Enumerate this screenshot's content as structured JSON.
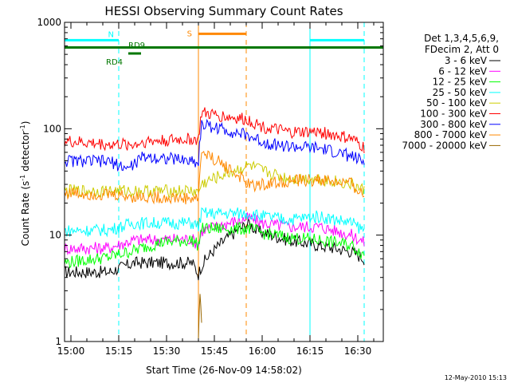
{
  "chart_data": {
    "type": "line",
    "title": "HESSI Observing Summary Count Rates",
    "xlabel": "Start Time (26-Nov-09 14:58:02)",
    "ylabel_main": "Count Rate (s",
    "ylabel_sup1": "-1",
    "ylabel_mid": " detector",
    "ylabel_sup2": "-1",
    "ylabel_end": ")",
    "x_ticks": [
      "15:00",
      "15:15",
      "15:30",
      "15:45",
      "16:00",
      "16:15",
      "16:30"
    ],
    "x_tick_minutes": [
      2,
      17,
      32,
      47,
      62,
      77,
      92
    ],
    "xlim_minutes": [
      0,
      100
    ],
    "y_ticks": [
      "1",
      "10",
      "100",
      "1000"
    ],
    "y_tick_values": [
      1,
      10,
      100,
      1000
    ],
    "ylim": [
      1,
      1000
    ],
    "y_scale": "log",
    "grid": false,
    "legend_header": [
      "Det 1,3,4,5,6,9,",
      "FDecim 2, Att 0"
    ],
    "legend_position": "right",
    "footer_timestamp": "12-May-2010 15:13",
    "series": [
      {
        "name": "3 - 6 keV",
        "color": "#000000",
        "points": [
          [
            0,
            4.5
          ],
          [
            14,
            4.5
          ],
          [
            22,
            5.5
          ],
          [
            40,
            5.5
          ],
          [
            42,
            4.3
          ],
          [
            43,
            5.2
          ],
          [
            58,
            13
          ],
          [
            60,
            11
          ],
          [
            65,
            10
          ],
          [
            70,
            9
          ],
          [
            80,
            8
          ],
          [
            90,
            7
          ],
          [
            94,
            6
          ]
        ]
      },
      {
        "name": "6 - 12 keV",
        "color": "#ff00ff",
        "points": [
          [
            0,
            7.5
          ],
          [
            14,
            7.6
          ],
          [
            22,
            9
          ],
          [
            40,
            9.2
          ],
          [
            42,
            8
          ],
          [
            43,
            11
          ],
          [
            58,
            14.5
          ],
          [
            62,
            13
          ],
          [
            70,
            12
          ],
          [
            80,
            12
          ],
          [
            90,
            10
          ],
          [
            94,
            8.5
          ]
        ]
      },
      {
        "name": "12 - 25 keV",
        "color": "#00ff00",
        "points": [
          [
            0,
            5.5
          ],
          [
            14,
            6.2
          ],
          [
            22,
            7.2
          ],
          [
            30,
            8.5
          ],
          [
            40,
            9
          ],
          [
            42,
            8
          ],
          [
            43,
            11.5
          ],
          [
            58,
            11.5
          ],
          [
            62,
            10.5
          ],
          [
            70,
            9.5
          ],
          [
            80,
            9
          ],
          [
            90,
            8
          ],
          [
            94,
            6.5
          ]
        ]
      },
      {
        "name": "25 - 50 keV",
        "color": "#00ffff",
        "points": [
          [
            0,
            11
          ],
          [
            14,
            11.2
          ],
          [
            22,
            13
          ],
          [
            40,
            13
          ],
          [
            42,
            12
          ],
          [
            43,
            16
          ],
          [
            58,
            16
          ],
          [
            62,
            15
          ],
          [
            70,
            14
          ],
          [
            80,
            15
          ],
          [
            90,
            13
          ],
          [
            94,
            11
          ]
        ]
      },
      {
        "name": "50 - 100 keV",
        "color": "#cccc00",
        "points": [
          [
            0,
            26
          ],
          [
            14,
            26
          ],
          [
            22,
            26
          ],
          [
            40,
            26
          ],
          [
            42,
            25
          ],
          [
            43,
            30
          ],
          [
            58,
            45
          ],
          [
            62,
            40
          ],
          [
            70,
            34
          ],
          [
            80,
            34
          ],
          [
            90,
            30
          ],
          [
            94,
            26
          ]
        ]
      },
      {
        "name": "100 - 300 keV",
        "color": "#ff0000",
        "points": [
          [
            0,
            76
          ],
          [
            14,
            71
          ],
          [
            22,
            71
          ],
          [
            25,
            76
          ],
          [
            40,
            80
          ],
          [
            42,
            78
          ],
          [
            43,
            140
          ],
          [
            58,
            120
          ],
          [
            62,
            105
          ],
          [
            70,
            92
          ],
          [
            80,
            93
          ],
          [
            90,
            80
          ],
          [
            94,
            66
          ]
        ]
      },
      {
        "name": "300 - 800 keV",
        "color": "#0000ff",
        "points": [
          [
            0,
            50
          ],
          [
            14,
            49
          ],
          [
            20,
            42
          ],
          [
            25,
            55
          ],
          [
            40,
            50
          ],
          [
            42,
            48
          ],
          [
            43,
            110
          ],
          [
            58,
            85
          ],
          [
            62,
            75
          ],
          [
            70,
            68
          ],
          [
            80,
            65
          ],
          [
            90,
            55
          ],
          [
            94,
            48
          ]
        ]
      },
      {
        "name": "800 - 7000 keV",
        "color": "#ff8800",
        "points": [
          [
            0,
            25
          ],
          [
            14,
            24
          ],
          [
            22,
            23
          ],
          [
            40,
            22
          ],
          [
            42,
            22
          ],
          [
            43,
            60
          ],
          [
            58,
            29
          ],
          [
            62,
            30
          ],
          [
            70,
            32
          ],
          [
            80,
            33
          ],
          [
            90,
            30
          ],
          [
            94,
            23
          ]
        ]
      },
      {
        "name": "7000 - 20000 keV",
        "color": "#996600",
        "points": [
          [
            42,
            1.05
          ],
          [
            42.5,
            2.8
          ],
          [
            43,
            1.5
          ]
        ]
      }
    ],
    "flag_lines": [
      {
        "label": "N",
        "color": "#00ffff",
        "ranges": [
          [
            0,
            17
          ],
          [
            77,
            94
          ]
        ],
        "level": 680
      },
      {
        "label": "S",
        "color": "#ff8800",
        "ranges": [
          [
            42,
            57
          ]
        ],
        "level": 780
      },
      {
        "label": "RD9",
        "color": "#007700",
        "ranges": [
          [
            20,
            24
          ]
        ],
        "level": 510
      },
      {
        "label": "RD4",
        "color": "#007700",
        "ranges": [],
        "level": 510
      },
      {
        "label": "",
        "color": "#007700",
        "ranges": [
          [
            0,
            100
          ]
        ],
        "level": 580
      }
    ],
    "event_lines": [
      {
        "color": "#00ffff",
        "minute": 0,
        "style": "solid"
      },
      {
        "color": "#00ffff",
        "minute": 17,
        "style": "dashed"
      },
      {
        "color": "#ff8800",
        "minute": 42,
        "style": "solid"
      },
      {
        "color": "#ff8800",
        "minute": 57,
        "style": "dashed"
      },
      {
        "color": "#00ffff",
        "minute": 77,
        "style": "solid"
      },
      {
        "color": "#00ffff",
        "minute": 94,
        "style": "dashed"
      }
    ]
  }
}
